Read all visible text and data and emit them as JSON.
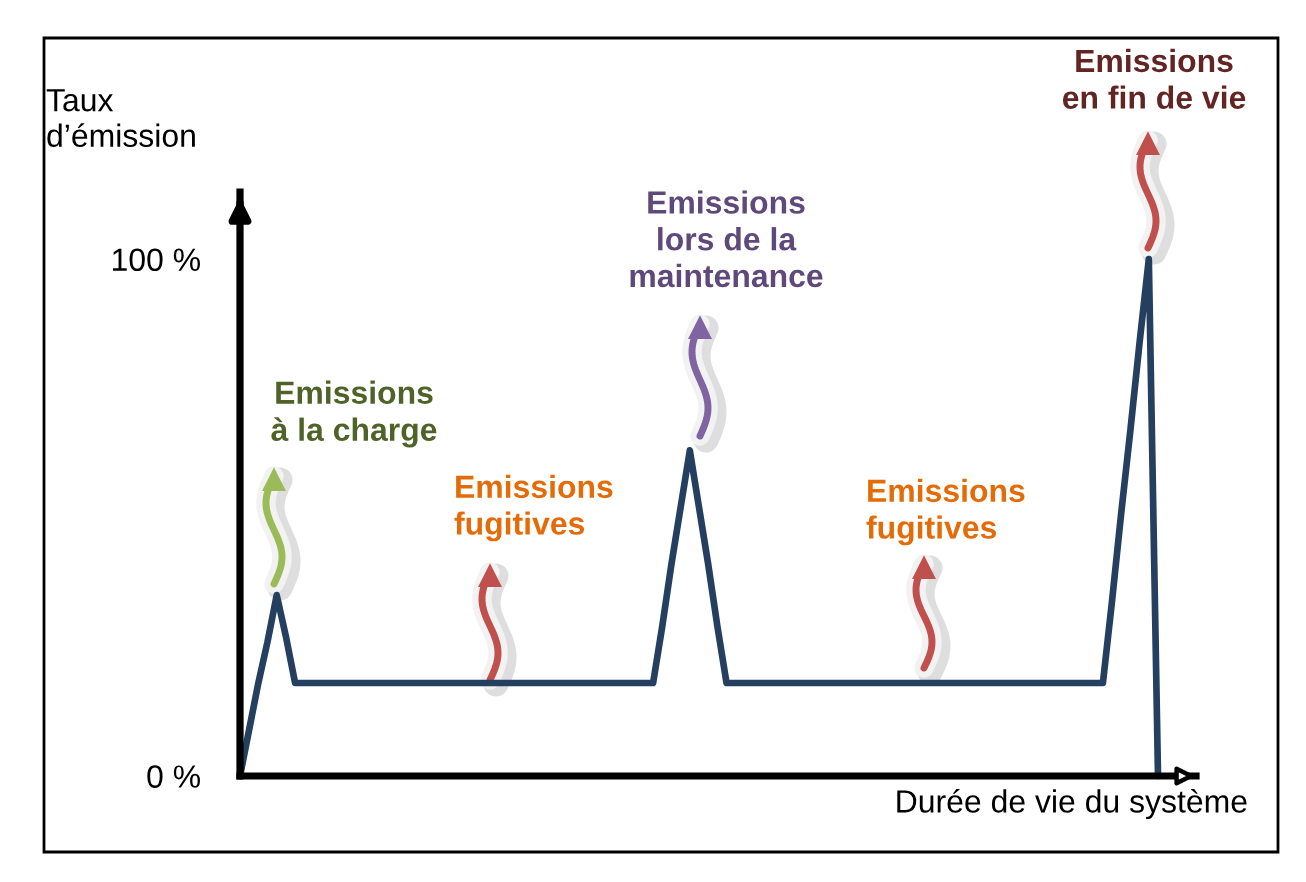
{
  "chart_data": {
    "type": "line",
    "xlabel": "Durée de vie du système",
    "ylabel": "Taux\nd’émission",
    "categories": [
      null,
      null,
      null,
      null,
      null,
      null,
      null,
      null,
      null,
      null,
      null,
      null,
      null,
      null,
      null,
      null,
      null,
      null,
      null,
      null,
      null,
      null,
      null,
      null,
      null,
      null,
      null,
      null,
      null,
      null,
      null,
      null,
      null,
      null,
      null,
      null,
      null,
      null,
      null,
      null,
      null,
      null,
      null,
      null,
      null,
      null,
      null,
      null,
      null,
      null,
      null,
      null,
      null,
      null,
      null,
      null,
      null,
      null,
      null,
      null,
      null,
      null,
      null,
      null,
      null,
      null,
      null,
      null,
      null,
      null,
      null,
      null,
      null,
      null,
      null,
      null,
      null,
      null,
      null,
      null,
      null,
      null,
      null,
      null,
      null,
      null,
      null,
      null,
      null,
      null,
      null,
      null,
      null,
      null,
      null,
      null,
      null,
      null,
      null,
      null,
      null
    ],
    "series": [
      {
        "color": "#243f60",
        "values": [
          0,
          9,
          18,
          26,
          35,
          27,
          18,
          18,
          18,
          18,
          18,
          18,
          18,
          18,
          18,
          18,
          18,
          18,
          18,
          18,
          18,
          18,
          18,
          18,
          18,
          18,
          18,
          18,
          18,
          18,
          18,
          18,
          18,
          18,
          18,
          18,
          18,
          18,
          18,
          18,
          18,
          18,
          18,
          18,
          18,
          18,
          29,
          41,
          52,
          63,
          52,
          41,
          29,
          18,
          18,
          18,
          18,
          18,
          18,
          18,
          18,
          18,
          18,
          18,
          18,
          18,
          18,
          18,
          18,
          18,
          18,
          18,
          18,
          18,
          18,
          18,
          18,
          18,
          18,
          18,
          18,
          18,
          18,
          18,
          18,
          18,
          18,
          18,
          18,
          18,
          18,
          18,
          18,
          18,
          18,
          34,
          51,
          67,
          84,
          100,
          0
        ]
      }
    ],
    "ylim": [
      0,
      113
    ],
    "yticks": [
      {
        "value": 0,
        "label": "0 %"
      },
      {
        "value": 100,
        "label": "100 %"
      }
    ],
    "tick_labels": "y",
    "annotations": [
      "Emissions\nà la charge",
      "Emissions\nfugitives",
      "Emissions\nlors de la\nmaintenance",
      "Emissions\nfugitives",
      "Emissions\nen fin de vie"
    ]
  }
}
